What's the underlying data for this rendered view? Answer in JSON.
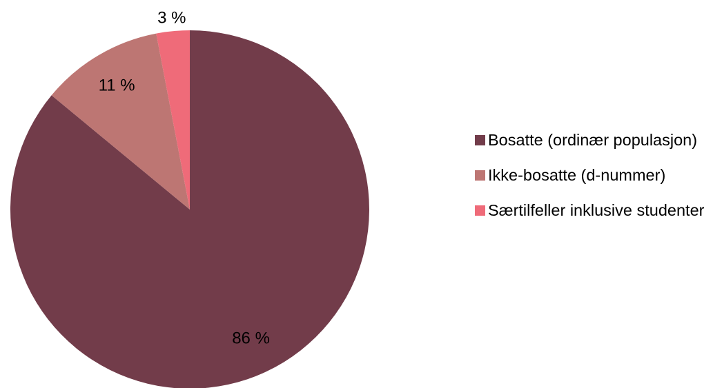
{
  "chart_data": {
    "type": "pie",
    "categories": [
      "Bosatte (ordinær populasjon)",
      "Ikke-bosatte (d-nummer)",
      "Særtilfeller inklusive studenter"
    ],
    "values": [
      86,
      11,
      3
    ],
    "value_labels": [
      "86 %",
      "11 %",
      "3 %"
    ],
    "colors": [
      "#723c4a",
      "#bd7673",
      "#ef6b79"
    ],
    "legend": "right"
  }
}
